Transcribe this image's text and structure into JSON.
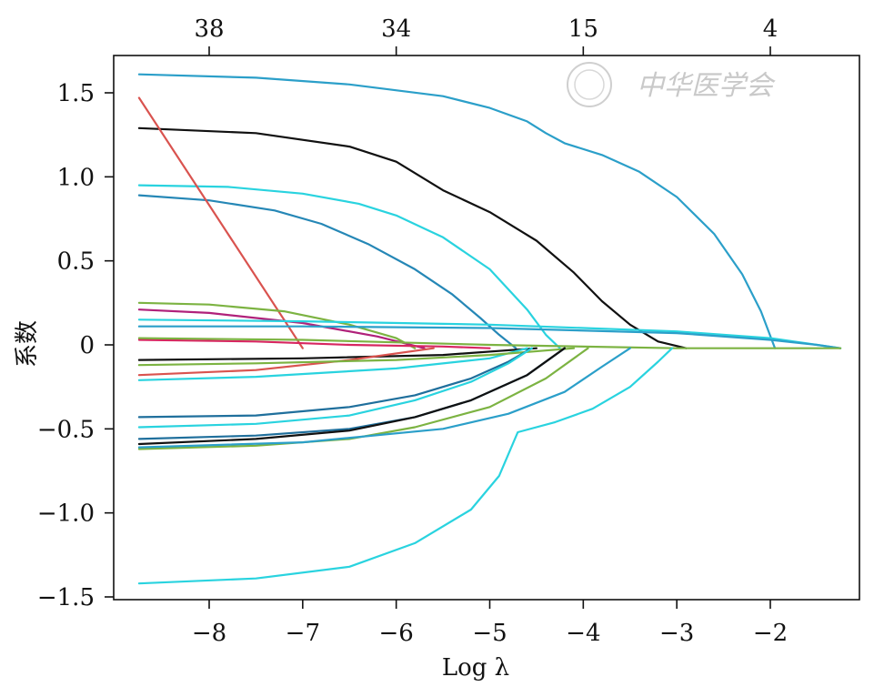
{
  "chart_data": {
    "type": "line",
    "title": "",
    "xlabel": "Log λ",
    "ylabel": "系数",
    "xlim": [
      -9.0,
      -1.0
    ],
    "ylim": [
      -1.5,
      1.7
    ],
    "x_ticks": [
      -8,
      -7,
      -6,
      -5,
      -4,
      -3,
      -2
    ],
    "x_tick_labels": [
      "−8",
      "−7",
      "−6",
      "−5",
      "−4",
      "−3",
      "−2"
    ],
    "y_ticks": [
      1.5,
      1.0,
      0.5,
      0,
      -0.5,
      -1.0,
      -1.5
    ],
    "y_tick_labels": [
      "1.5",
      "1.0",
      "0.5",
      "0",
      "−0.5",
      "−1.0",
      "−1.5"
    ],
    "top_axis": {
      "ticks": [
        -8,
        -6,
        -4,
        -2
      ],
      "labels": [
        "38",
        "34",
        "15",
        "4"
      ]
    },
    "grid": false,
    "legend": "none",
    "watermark": "中华医学会",
    "series": [
      {
        "color": "#2b9fc9",
        "x": [
          -8.75,
          -7.5,
          -6.5,
          -5.5,
          -5.0,
          -4.6,
          -4.4,
          -4.2,
          -3.8,
          -3.4,
          -3.0,
          -2.6,
          -2.3,
          -2.1,
          -1.95
        ],
        "y": [
          1.61,
          1.59,
          1.55,
          1.48,
          1.41,
          1.33,
          1.26,
          1.2,
          1.13,
          1.03,
          0.88,
          0.66,
          0.42,
          0.2,
          -0.02
        ]
      },
      {
        "color": "#111111",
        "x": [
          -8.75,
          -7.5,
          -6.5,
          -6.0,
          -5.5,
          -5.0,
          -4.5,
          -4.1,
          -3.8,
          -3.5,
          -3.2,
          -2.9
        ],
        "y": [
          1.29,
          1.26,
          1.18,
          1.09,
          0.92,
          0.79,
          0.62,
          0.43,
          0.26,
          0.12,
          0.02,
          -0.02
        ]
      },
      {
        "color": "#29d3df",
        "x": [
          -8.75,
          -7.8,
          -7.0,
          -6.4,
          -6.0,
          -5.5,
          -5.0,
          -4.6,
          -4.4,
          -4.25
        ],
        "y": [
          0.95,
          0.94,
          0.9,
          0.84,
          0.77,
          0.64,
          0.45,
          0.21,
          0.06,
          -0.02
        ]
      },
      {
        "color": "#2587b6",
        "x": [
          -8.75,
          -8.0,
          -7.3,
          -6.8,
          -6.3,
          -5.8,
          -5.4,
          -5.1,
          -4.9,
          -4.72
        ],
        "y": [
          0.89,
          0.86,
          0.8,
          0.72,
          0.6,
          0.45,
          0.3,
          0.16,
          0.06,
          -0.02
        ]
      },
      {
        "color": "#d9534f",
        "x": [
          -8.75,
          -7.0
        ],
        "y": [
          1.47,
          -0.02
        ]
      },
      {
        "color": "#7cb342",
        "x": [
          -8.75,
          -8.0,
          -7.2,
          -6.5,
          -6.0,
          -5.8
        ],
        "y": [
          0.25,
          0.24,
          0.2,
          0.12,
          0.04,
          -0.02
        ]
      },
      {
        "color": "#b0217a",
        "x": [
          -8.75,
          -8.0,
          -7.0,
          -6.2,
          -5.7
        ],
        "y": [
          0.21,
          0.19,
          0.13,
          0.05,
          -0.02
        ]
      },
      {
        "color": "#29d3df",
        "x": [
          -8.75,
          -7.0,
          -5.0,
          -3.0,
          -2.0,
          -1.5,
          -1.25
        ],
        "y": [
          0.15,
          0.14,
          0.12,
          0.08,
          0.04,
          0.0,
          -0.02
        ]
      },
      {
        "color": "#2b9fc9",
        "x": [
          -8.75,
          -7.0,
          -5.0,
          -3.0,
          -2.0,
          -1.5,
          -1.25
        ],
        "y": [
          0.11,
          0.11,
          0.1,
          0.07,
          0.03,
          0.0,
          -0.02
        ]
      },
      {
        "color": "#d72660",
        "x": [
          -8.75,
          -7.5,
          -6.5,
          -5.5,
          -5.0
        ],
        "y": [
          0.03,
          0.02,
          0.0,
          -0.01,
          -0.02
        ]
      },
      {
        "color": "#7cb342",
        "x": [
          -8.75,
          -7.0,
          -5.0,
          -3.0,
          -1.25
        ],
        "y": [
          0.04,
          0.03,
          0.0,
          -0.02,
          -0.02
        ]
      },
      {
        "color": "#111111",
        "x": [
          -8.75,
          -7.0,
          -5.5,
          -4.5
        ],
        "y": [
          -0.09,
          -0.08,
          -0.06,
          -0.02
        ]
      },
      {
        "color": "#d9534f",
        "x": [
          -8.75,
          -7.5,
          -6.5,
          -5.6
        ],
        "y": [
          -0.18,
          -0.15,
          -0.09,
          -0.02
        ]
      },
      {
        "color": "#29d3df",
        "x": [
          -8.75,
          -7.5,
          -6.0,
          -5.0,
          -4.6
        ],
        "y": [
          -0.21,
          -0.19,
          -0.14,
          -0.08,
          -0.02
        ]
      },
      {
        "color": "#7cb342",
        "x": [
          -8.75,
          -7.5,
          -6.0,
          -5.0,
          -4.1
        ],
        "y": [
          -0.12,
          -0.11,
          -0.09,
          -0.06,
          -0.02
        ]
      },
      {
        "color": "#1f6f9c",
        "x": [
          -8.75,
          -7.5,
          -6.5,
          -5.8,
          -5.2,
          -4.8,
          -4.55
        ],
        "y": [
          -0.43,
          -0.42,
          -0.37,
          -0.3,
          -0.2,
          -0.1,
          -0.02
        ]
      },
      {
        "color": "#29d3df",
        "x": [
          -8.75,
          -7.5,
          -6.5,
          -5.8,
          -5.2,
          -4.8,
          -4.55
        ],
        "y": [
          -0.49,
          -0.47,
          -0.42,
          -0.33,
          -0.22,
          -0.11,
          -0.02
        ]
      },
      {
        "color": "#1f6f9c",
        "x": [
          -8.75,
          -7.5,
          -6.5,
          -5.8,
          -5.2,
          -4.6,
          -4.2
        ],
        "y": [
          -0.56,
          -0.54,
          -0.5,
          -0.43,
          -0.33,
          -0.18,
          -0.02
        ]
      },
      {
        "color": "#111111",
        "x": [
          -8.75,
          -7.5,
          -6.5,
          -5.8,
          -5.2,
          -4.6,
          -4.2
        ],
        "y": [
          -0.59,
          -0.56,
          -0.51,
          -0.43,
          -0.33,
          -0.18,
          -0.02
        ]
      },
      {
        "color": "#7cb342",
        "x": [
          -8.75,
          -7.5,
          -6.5,
          -5.8,
          -5.0,
          -4.4,
          -3.95
        ],
        "y": [
          -0.62,
          -0.6,
          -0.56,
          -0.49,
          -0.37,
          -0.2,
          -0.02
        ]
      },
      {
        "color": "#2b9fc9",
        "x": [
          -8.75,
          -7.0,
          -5.5,
          -4.8,
          -4.2,
          -3.8,
          -3.5
        ],
        "y": [
          -0.61,
          -0.58,
          -0.5,
          -0.41,
          -0.28,
          -0.13,
          -0.02
        ]
      },
      {
        "color": "#29d3df",
        "x": [
          -8.75,
          -7.5,
          -6.5,
          -5.8,
          -5.2,
          -4.9,
          -4.7,
          -4.3,
          -3.9,
          -3.5,
          -3.2,
          -3.05
        ],
        "y": [
          -1.42,
          -1.39,
          -1.32,
          -1.18,
          -0.98,
          -0.78,
          -0.52,
          -0.46,
          -0.38,
          -0.25,
          -0.1,
          -0.02
        ]
      }
    ]
  }
}
